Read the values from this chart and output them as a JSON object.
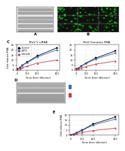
{
  "panel_C_left_title": "MuV V siRNA",
  "panel_C_right_title": "MuV Genomic RNA",
  "panel_C_xlabel": "Virus dose (dilution)",
  "panel_C_ylabel": "Fold relative RNA",
  "panel_C_x": [
    0,
    25,
    50,
    100,
    200,
    400
  ],
  "panel_C_series": {
    "siControl": {
      "color": "#000000",
      "marker": "s",
      "values_left": [
        1,
        2.5,
        5,
        8,
        14,
        22
      ],
      "values_right": [
        1,
        2,
        4,
        7,
        12,
        19
      ]
    },
    "siBET1": {
      "color": "#3366cc",
      "marker": "o",
      "values_left": [
        1,
        2.3,
        4.8,
        7.5,
        13,
        20
      ],
      "values_right": [
        1,
        1.8,
        3.8,
        6.5,
        11,
        17
      ]
    },
    "siSEC22B": {
      "color": "#cc3333",
      "marker": "^",
      "values_left": [
        1,
        1.5,
        2.5,
        4,
        7,
        10
      ],
      "values_right": [
        1,
        1.2,
        2.0,
        3.5,
        6,
        9
      ]
    }
  },
  "panel_E_ylabel": "Fold relative RNA",
  "panel_E_xlabel": "Virus dose (dilution)",
  "panel_E_x": [
    0,
    25,
    50,
    100,
    200,
    400
  ],
  "panel_E_series": {
    "siControl": {
      "color": "#000000",
      "marker": "s",
      "values": [
        0,
        1,
        2.5,
        5,
        11,
        18
      ]
    },
    "siBET1": {
      "color": "#3366cc",
      "marker": "o",
      "values": [
        0,
        0.8,
        2,
        4.5,
        10,
        16
      ]
    },
    "siSEC22B": {
      "color": "#cc3333",
      "marker": "^",
      "values": [
        0,
        0.5,
        1.2,
        2.5,
        4.5,
        7
      ]
    }
  },
  "background_color": "#ffffff",
  "wb_color": "#d0d0d0",
  "blue_label": "#3366cc",
  "red_label": "#cc3333"
}
